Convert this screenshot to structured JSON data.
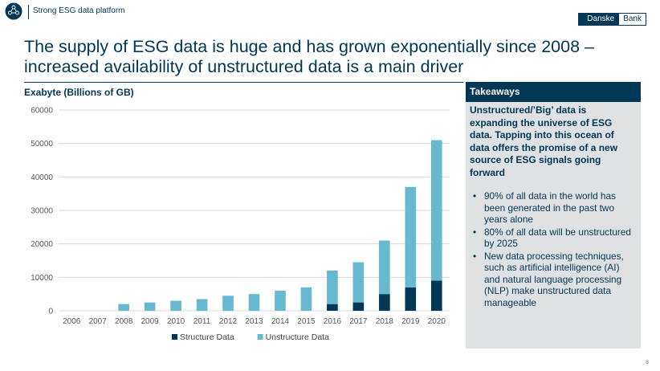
{
  "header": {
    "platform_title": "Strong ESG data platform",
    "brand_part1": "Danske",
    "brand_part2": "Bank"
  },
  "slide": {
    "title": "The supply of ESG data is huge and has grown exponentially since 2008 – increased availability of unstructured data is a main driver",
    "page_number": "8"
  },
  "colors": {
    "navy": "#003755",
    "light_blue": "#69b8d1",
    "panel_gray": "#dfe1e3",
    "grid": "#d9d9d9"
  },
  "chart_data": {
    "type": "bar",
    "stacked": true,
    "title": "",
    "ylabel": "Exabyte (Billions of GB)",
    "xlabel": "",
    "ylim": [
      0,
      60000
    ],
    "yticks": [
      0,
      10000,
      20000,
      30000,
      40000,
      50000,
      60000
    ],
    "grid": true,
    "legend_position": "bottom",
    "categories": [
      "2006",
      "2007",
      "2008",
      "2009",
      "2010",
      "2011",
      "2012",
      "2013",
      "2014",
      "2015",
      "2016",
      "2017",
      "2018",
      "2019",
      "2020"
    ],
    "series": [
      {
        "name": "Structure Data",
        "color": "#003755",
        "values": [
          0,
          0,
          0,
          0,
          0,
          0,
          0,
          0,
          0,
          0,
          2000,
          2500,
          5000,
          7000,
          9000
        ]
      },
      {
        "name": "Unstructure Data",
        "color": "#69b8d1",
        "values": [
          0,
          0,
          2000,
          2500,
          3000,
          3500,
          4500,
          5000,
          6000,
          7000,
          10000,
          12000,
          16000,
          30000,
          42000
        ]
      }
    ]
  },
  "takeaways": {
    "heading": "Takeaways",
    "lead": "Unstructured/’Big’ data is expanding the universe of ESG data. Tapping into this ocean of data offers the promise of a new source of ESG signals going forward",
    "bullet_glyph": "•",
    "bullets": [
      "90% of all data in the world has been generated in the past two years alone",
      "80% of all data will be unstructured by 2025",
      "New data processing techniques, such as artificial intelligence (AI) and natural language processing (NLP) make unstructured data manageable"
    ]
  }
}
